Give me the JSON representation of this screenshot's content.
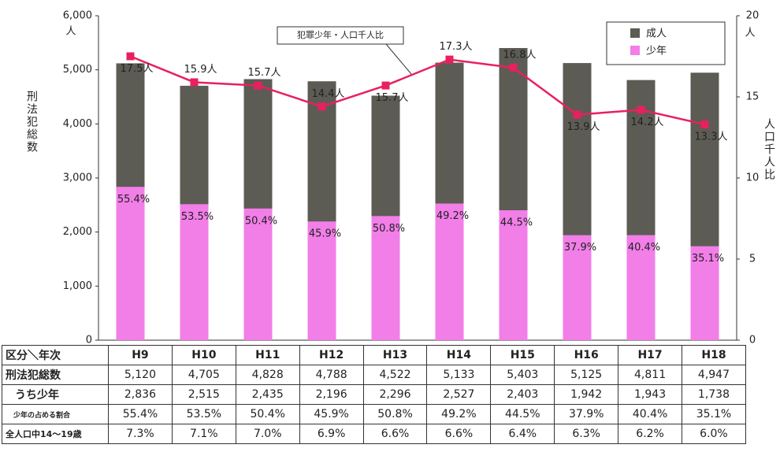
{
  "chart_data": {
    "type": "bar",
    "categories": [
      "H9",
      "H10",
      "H11",
      "H12",
      "H13",
      "H14",
      "H15",
      "H16",
      "H17",
      "H18"
    ],
    "series": [
      {
        "name": "成人",
        "color": "#5c5c54",
        "values": [
          5120,
          4705,
          4828,
          4788,
          4522,
          5133,
          5403,
          5125,
          4811,
          4947
        ]
      },
      {
        "name": "少年",
        "color": "#f27ee8",
        "values": [
          2836,
          2515,
          2435,
          2196,
          2296,
          2527,
          2403,
          1942,
          1943,
          1738
        ]
      }
    ],
    "share": {
      "values": [
        55.4,
        53.5,
        50.4,
        45.9,
        50.8,
        49.2,
        44.5,
        37.9,
        40.4,
        35.1
      ],
      "value_labels": [
        "55.4%",
        "53.5%",
        "50.4%",
        "45.9%",
        "50.8%",
        "49.2%",
        "44.5%",
        "37.9%",
        "40.4%",
        "35.1%"
      ]
    },
    "line": {
      "name": "犯罪少年・人口千人比",
      "color": "#e8205e",
      "axis": "y2",
      "values": [
        17.5,
        15.9,
        15.7,
        14.4,
        15.7,
        17.3,
        16.8,
        13.9,
        14.2,
        13.3
      ],
      "value_labels": [
        "17.5人",
        "15.9人",
        "15.7人",
        "14.4人",
        "15.7人",
        "17.3人",
        "16.8人",
        "13.9人",
        "14.2人",
        "13.3人"
      ]
    },
    "ylabel": "刑法犯総数",
    "yunit": "人",
    "y2label": "人口千人比",
    "y2unit": "人",
    "ylim": [
      0,
      6000
    ],
    "yticks": [
      0,
      {
        "value": 1000,
        "label": "1,000"
      },
      {
        "value": 2000,
        "label": "2,000"
      },
      {
        "value": 3000,
        "label": "3,000"
      },
      {
        "value": 4000,
        "label": "4,000"
      },
      {
        "value": 5000,
        "label": "5,000"
      },
      {
        "value": 6000,
        "label": "6,000"
      }
    ],
    "y2lim": [
      0,
      20
    ],
    "y2ticks": [
      0,
      5,
      10,
      15,
      20
    ],
    "grid": false,
    "legend": "upper right"
  },
  "table": {
    "header": [
      "区分＼年次",
      "H9",
      "H10",
      "H11",
      "H12",
      "H13",
      "H14",
      "H15",
      "H16",
      "H17",
      "H18"
    ],
    "rows": [
      [
        "刑法犯総数",
        "5,120",
        "4,705",
        "4,828",
        "4,788",
        "4,522",
        "5,133",
        "5,403",
        "5,125",
        "4,811",
        "4,947"
      ],
      [
        "うち少年",
        "2,836",
        "2,515",
        "2,435",
        "2,196",
        "2,296",
        "2,527",
        "2,403",
        "1,942",
        "1,943",
        "1,738"
      ],
      [
        "少年の占める割合",
        "55.4%",
        "53.5%",
        "50.4%",
        "45.9%",
        "50.8%",
        "49.2%",
        "44.5%",
        "37.9%",
        "40.4%",
        "35.1%"
      ],
      [
        "全人口中14～19歳",
        "7.3%",
        "7.1%",
        "7.0%",
        "6.9%",
        "6.6%",
        "6.6%",
        "6.4%",
        "6.3%",
        "6.2%",
        "6.0%"
      ]
    ]
  }
}
